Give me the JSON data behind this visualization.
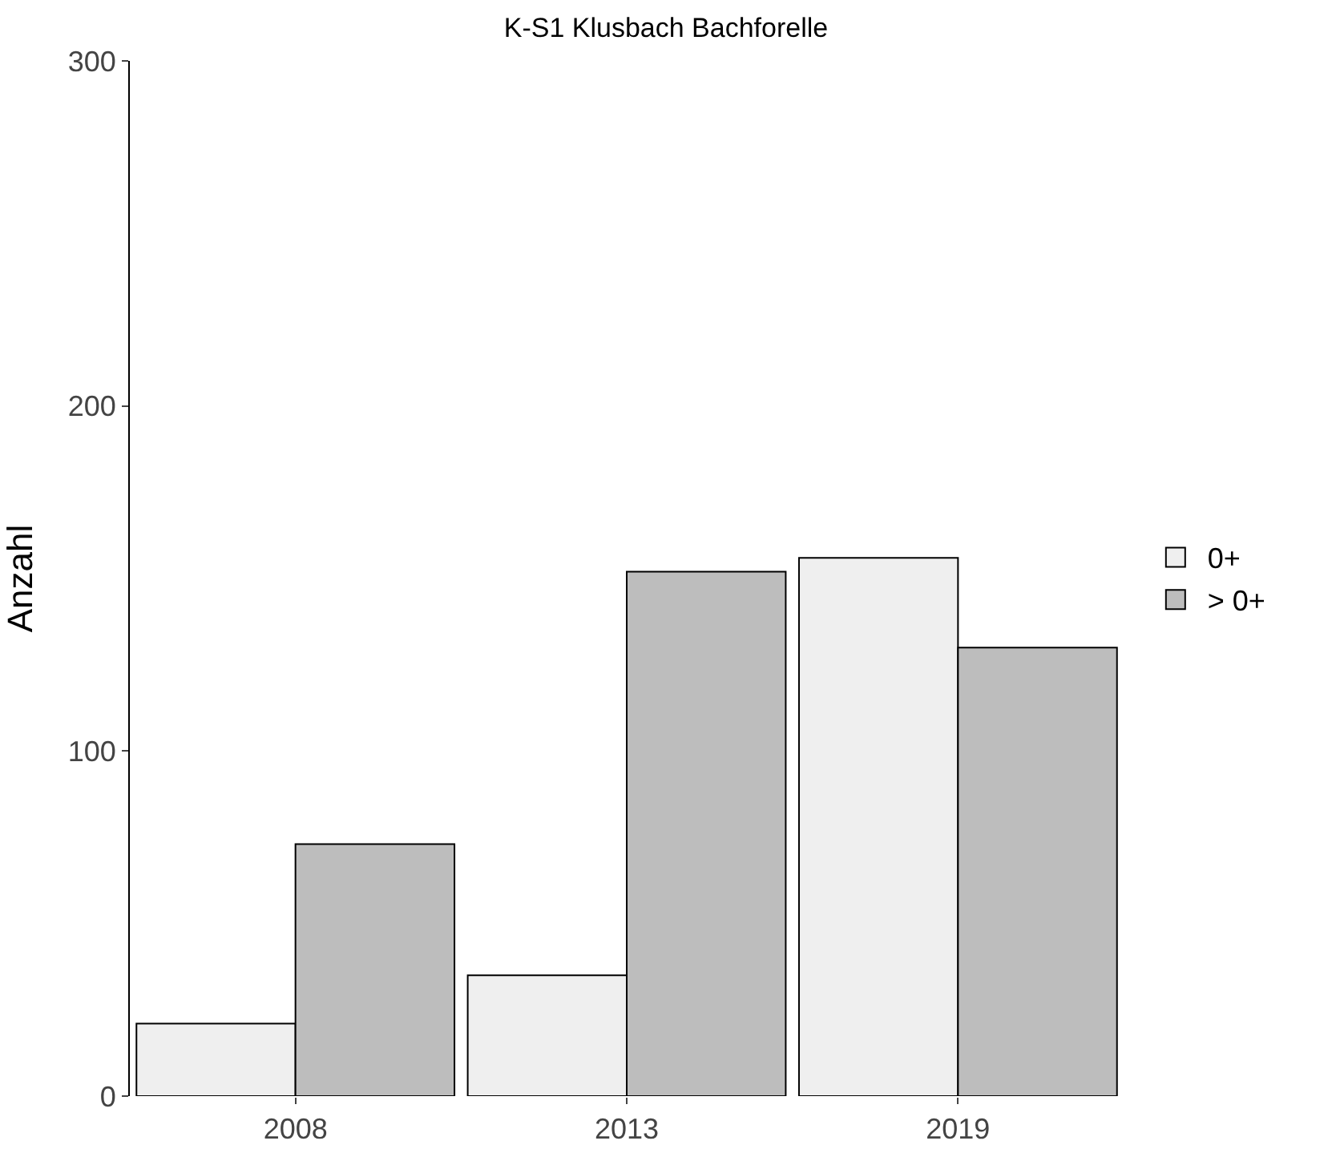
{
  "chart_data": {
    "type": "bar",
    "title": "K-S1 Klusbach Bachforelle",
    "ylabel": "Anzahl",
    "categories": [
      "2008",
      "2013",
      "2019"
    ],
    "series": [
      {
        "name": "0+",
        "color": "#efefef",
        "values": [
          21,
          35,
          156
        ]
      },
      {
        "name": "> 0+",
        "color": "#bdbdbd",
        "values": [
          73,
          152,
          130
        ]
      }
    ],
    "ylim": [
      0,
      300
    ],
    "yticks": [
      0,
      100,
      200,
      300
    ],
    "legend": "right"
  }
}
